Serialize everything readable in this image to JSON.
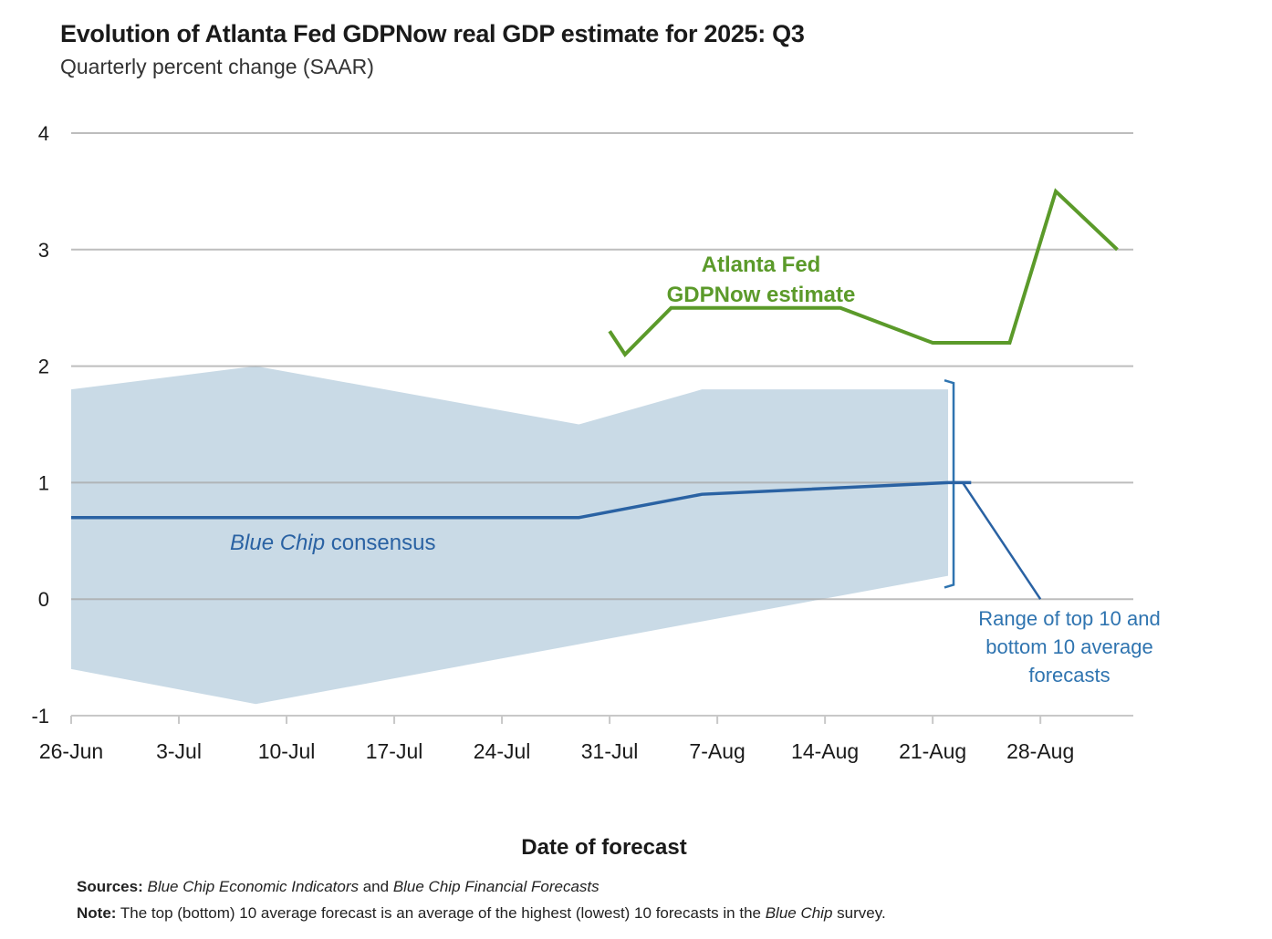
{
  "chart_data": {
    "type": "line",
    "title": "Evolution of Atlanta Fed GDPNow real GDP estimate for 2025: Q3",
    "subtitle": "Quarterly percent change (SAAR)",
    "xlabel": "Date of forecast",
    "ylabel": "",
    "ylim": [
      -1,
      4
    ],
    "yticks": [
      4,
      3,
      2,
      1,
      0,
      -1
    ],
    "yticklabels": [
      "4",
      "3",
      "2",
      "1",
      "0",
      "-1"
    ],
    "xlim_days": [
      0,
      68
    ],
    "xticks": [
      {
        "label": "26-Jun",
        "day": 0
      },
      {
        "label": "3-Jul",
        "day": 7
      },
      {
        "label": "10-Jul",
        "day": 14
      },
      {
        "label": "17-Jul",
        "day": 21
      },
      {
        "label": "24-Jul",
        "day": 28
      },
      {
        "label": "31-Jul",
        "day": 35
      },
      {
        "label": "7-Aug",
        "day": 42
      },
      {
        "label": "14-Aug",
        "day": 49
      },
      {
        "label": "21-Aug",
        "day": 56
      },
      {
        "label": "28-Aug",
        "day": 63
      }
    ],
    "grid": true,
    "series": [
      {
        "name": "Atlanta Fed GDPNow estimate",
        "color": "#5b9a2a",
        "points": [
          {
            "day": 35,
            "date": "31-Jul",
            "value": 2.3
          },
          {
            "day": 36,
            "date": "1-Aug",
            "value": 2.1
          },
          {
            "day": 39,
            "date": "4-Aug",
            "value": 2.5
          },
          {
            "day": 50,
            "date": "15-Aug",
            "value": 2.5
          },
          {
            "day": 56,
            "date": "21-Aug",
            "value": 2.2
          },
          {
            "day": 61,
            "date": "26-Aug",
            "value": 2.2
          },
          {
            "day": 64,
            "date": "29-Aug",
            "value": 3.5
          },
          {
            "day": 68,
            "date": "2-Sep",
            "value": 3.0
          }
        ]
      },
      {
        "name": "Blue Chip consensus",
        "color": "#2a62a3",
        "points": [
          {
            "day": 0,
            "value": 0.7
          },
          {
            "day": 33,
            "value": 0.7
          },
          {
            "day": 41,
            "value": 0.9
          },
          {
            "day": 57,
            "value": 1.0
          },
          {
            "day": 58.5,
            "value": 1.0
          }
        ]
      }
    ],
    "band": {
      "name": "Range of top 10 and bottom 10 average forecasts",
      "color": "#c9dae6",
      "top": [
        {
          "day": 0,
          "value": 1.8
        },
        {
          "day": 12,
          "value": 2.0
        },
        {
          "day": 33,
          "value": 1.5
        },
        {
          "day": 41,
          "value": 1.8
        },
        {
          "day": 57,
          "value": 1.8
        }
      ],
      "bottom": [
        {
          "day": 0,
          "value": -0.6
        },
        {
          "day": 12,
          "value": -0.9
        },
        {
          "day": 57,
          "value": 0.2
        }
      ]
    },
    "annotations": [
      {
        "text_line1": "Atlanta Fed",
        "text_line2": "GDPNow estimate",
        "color": "#5b9a2a"
      },
      {
        "text_italic": "Blue Chip",
        "text_rest": " consensus",
        "color": "#2a62a3"
      },
      {
        "line1": "Range of top 10 and",
        "line2": "bottom 10 average",
        "line3": "forecasts",
        "color": "#2f74b0"
      }
    ]
  },
  "footer": {
    "sources_label": "Sources:",
    "sources_italic1": "Blue Chip Economic Indicators",
    "sources_and": " and ",
    "sources_italic2": "Blue Chip Financial Forecasts",
    "note_label": "Note:",
    "note_text1": " The top (bottom) 10 average forecast is an average of the highest (lowest) 10 forecasts in the ",
    "note_italic": "Blue Chip",
    "note_text2": " survey."
  }
}
